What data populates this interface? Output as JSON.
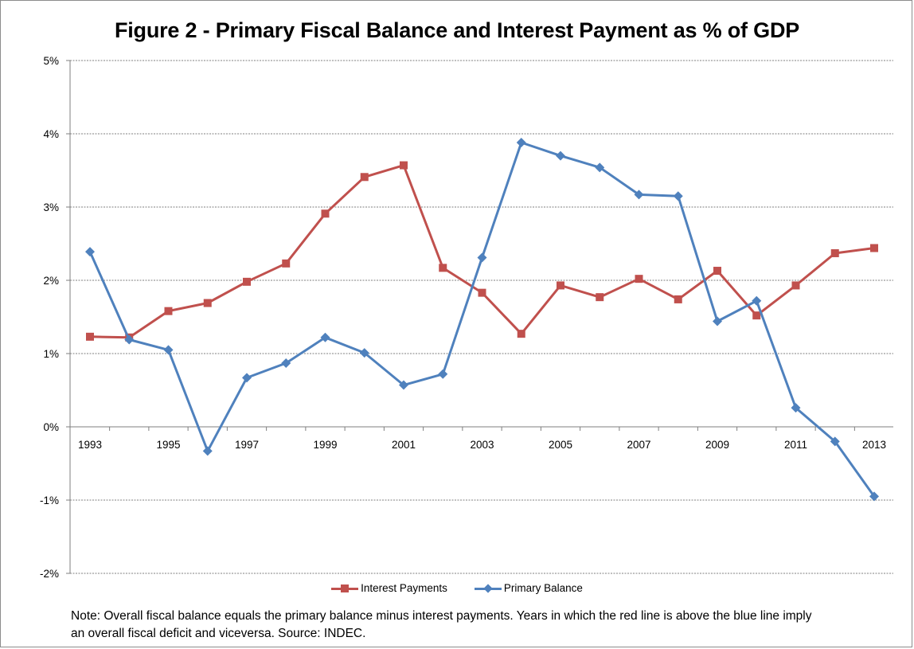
{
  "chart_data": {
    "type": "line",
    "title": "Figure 2 - Primary Fiscal Balance and Interest Payment as % of GDP",
    "x": [
      1993,
      1994,
      1995,
      1996,
      1997,
      1998,
      1999,
      2000,
      2001,
      2002,
      2003,
      2004,
      2005,
      2006,
      2007,
      2008,
      2009,
      2010,
      2011,
      2012,
      2013
    ],
    "x_tick_labels": [
      "1993",
      "1995",
      "1997",
      "1999",
      "2001",
      "2003",
      "2005",
      "2007",
      "2009",
      "2011",
      "2013"
    ],
    "y_tick_labels": [
      "5%",
      "4%",
      "3%",
      "2%",
      "1%",
      "0%",
      "-1%",
      "-2%"
    ],
    "ylim": [
      -2,
      5
    ],
    "y_unit": "%",
    "grid": "horizontal dashed",
    "legend_position": "bottom",
    "series": [
      {
        "name": "Interest Payments",
        "color": "#c0504d",
        "marker": "square",
        "values": [
          1.23,
          1.22,
          1.58,
          1.69,
          1.98,
          2.23,
          2.91,
          3.41,
          3.57,
          2.17,
          1.83,
          1.27,
          1.93,
          1.77,
          2.02,
          1.74,
          2.13,
          1.52,
          1.93,
          2.37,
          2.44
        ]
      },
      {
        "name": "Primary Balance",
        "color": "#4f81bd",
        "marker": "diamond",
        "values": [
          2.39,
          1.19,
          1.05,
          -0.33,
          0.67,
          0.87,
          1.22,
          1.01,
          0.57,
          0.72,
          2.31,
          3.88,
          3.7,
          3.54,
          3.17,
          3.15,
          1.44,
          1.72,
          0.26,
          -0.2,
          -0.95
        ]
      }
    ]
  },
  "note": {
    "line1": "Note: Overall fiscal balance equals the primary balance minus interest payments. Years in which the red line is above the blue line imply",
    "line2": "an overall fiscal deficit and viceversa. Source: INDEC."
  }
}
